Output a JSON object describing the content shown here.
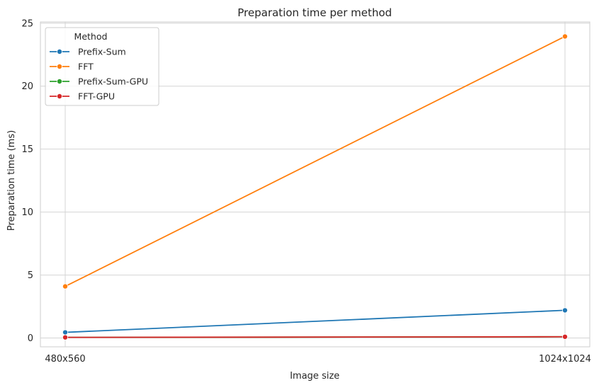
{
  "chart_data": {
    "type": "line",
    "title": "Preparation time per method",
    "xlabel": "Image size",
    "ylabel": "Preparation time (ms)",
    "categories": [
      "480x560",
      "1024x1024"
    ],
    "ylim": [
      -0.7,
      25.1
    ],
    "yticks": [
      0,
      5,
      10,
      15,
      20,
      25
    ],
    "grid": true,
    "legend": {
      "title": "Method",
      "placement": "top-left"
    },
    "series": [
      {
        "name": "Prefix-Sum",
        "color": "#1f77b4",
        "values": [
          0.45,
          2.2
        ]
      },
      {
        "name": "FFT",
        "color": "#ff7f0e",
        "values": [
          4.1,
          23.95
        ]
      },
      {
        "name": "Prefix-Sum-GPU",
        "color": "#2ca02c",
        "values": [
          0.05,
          0.1
        ]
      },
      {
        "name": "FFT-GPU",
        "color": "#d62728",
        "values": [
          0.05,
          0.1
        ]
      }
    ]
  }
}
